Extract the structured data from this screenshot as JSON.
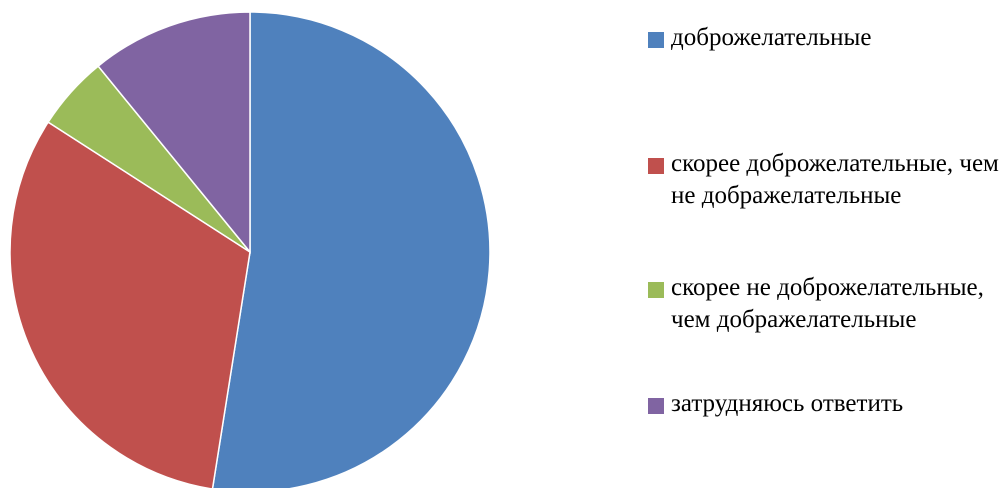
{
  "chart_data": {
    "type": "pie",
    "categories": [
      "доброжелательные",
      "скорее доброжелательные, чем не дображелательные",
      "скорее не доброжелательные, чем дображелательные",
      "затрудняюсь ответить"
    ],
    "values": [
      52.5,
      31.6,
      5.0,
      10.9
    ],
    "colors": [
      "#4F81BD",
      "#C0504D",
      "#9BBB59",
      "#8064A2"
    ],
    "start_angle_deg": 0,
    "direction": "clockwise",
    "legend_position": "right",
    "title": ""
  }
}
